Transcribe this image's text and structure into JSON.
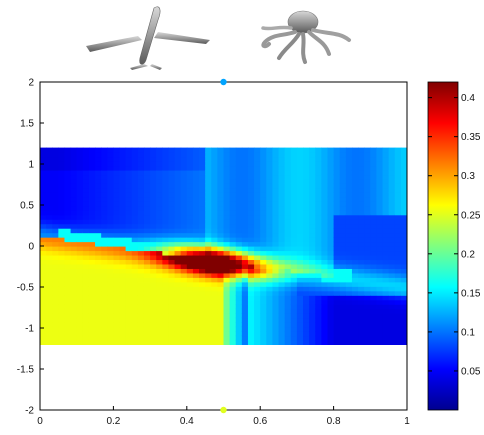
{
  "chart_data": [
    {
      "type": "heatmap",
      "title": "",
      "xlabel": "",
      "ylabel": "",
      "xlim": [
        0,
        1
      ],
      "ylim": [
        -2,
        2
      ],
      "x_ticks": [
        "0",
        "0.2",
        "0.4",
        "0.6",
        "0.8",
        "1"
      ],
      "y_ticks": [
        "-2",
        "-1.5",
        "-1",
        "-0.5",
        "0",
        "0.5",
        "1",
        "1.5",
        "2"
      ],
      "grid": false,
      "data_extent": {
        "x": [
          0,
          1
        ],
        "y": [
          -1.2,
          1.2
        ]
      },
      "value_range": [
        0,
        0.42
      ],
      "description_of_field": "value peaks (~0.42) along a diagonal band near x=0.4-0.55, y=-0.2 to 0.1; region below band at x<0.5 is ~0.25, region above band at x>0.5 is ~0.12, upper-left ~0.03",
      "sample_points": [
        {
          "x": 0.5,
          "y": 2,
          "value": 0.12,
          "label": "airplane shape"
        },
        {
          "x": 0.5,
          "y": -2,
          "value": 0.25,
          "label": "octopus shape"
        }
      ],
      "peak": {
        "x": 0.5,
        "y": -0.15,
        "value": 0.42
      }
    },
    {
      "type": "colorbar",
      "range": [
        0,
        0.42
      ],
      "ticks": [
        "0.05",
        "0.1",
        "0.15",
        "0.2",
        "0.25",
        "0.3",
        "0.35",
        "0.4"
      ],
      "colormap": "jet"
    }
  ],
  "icons": {
    "airplane": "airplane-3d-model",
    "octopus": "octopus-3d-model"
  }
}
